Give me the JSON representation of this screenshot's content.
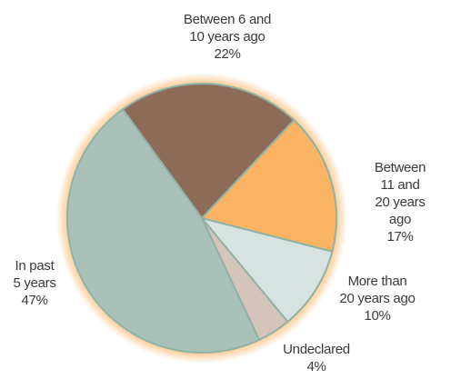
{
  "chart_data": {
    "type": "pie",
    "categories": [
      "Between 6 and\n10 years ago",
      "Between 11 and\n20 years ago",
      "More than\n20 years ago",
      "Undeclared",
      "In past\n5 years"
    ],
    "values": [
      22,
      17,
      10,
      4,
      47
    ],
    "value_labels": [
      "22%",
      "17%",
      "10%",
      "4%",
      "47%"
    ],
    "colors": [
      "#8c6b58",
      "#fbb463",
      "#d7e3e0",
      "#d4c4b9",
      "#aac1b9"
    ]
  }
}
